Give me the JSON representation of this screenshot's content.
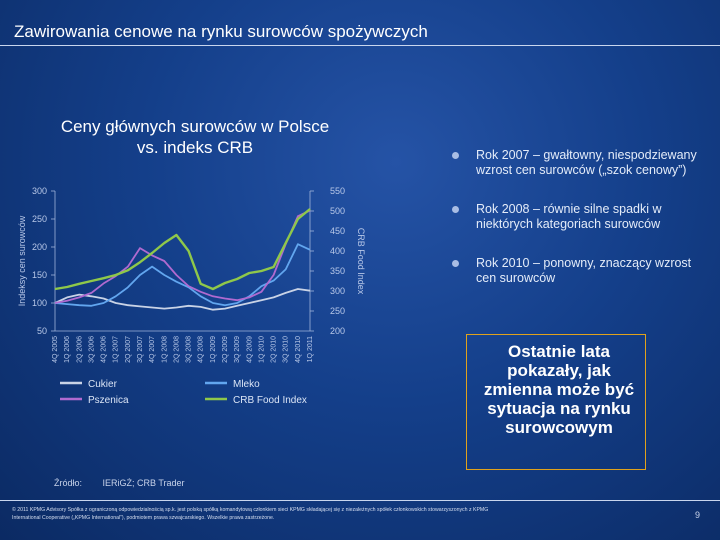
{
  "slide": {
    "title": "Zawirowania cenowe na rynku surowców spożywczych",
    "chart_heading": "Ceny głównych surowców w Polsce vs. indeks CRB",
    "bullets": [
      "Rok 2007 – gwałtowny, niespodziewany wzrost cen surowców („szok cenowy”)",
      "Rok 2008 – równie silne spadki w niektórych kategoriach surowców",
      "Rok 2010 – ponowny, znaczący wzrost cen surowców"
    ],
    "callout": "Ostatnie lata pokazały, jak zmienna może być sytuacja na rynku surowcowym",
    "source_label": "Źródło:",
    "source_text": "IERiGŻ; CRB Trader",
    "footer": "© 2011 KPMG Advisory Spółka z ograniczoną odpowiedzialnością sp.k. jest polską spółką komandytową członkiem sieci KPMG składającej się z niezależnych spółek członkowskich stowarzyszonych z KPMG International Cooperative („KPMG International”), podmiotem prawa szwajcarskiego. Wszelkie prawa zastrzeżone.",
    "page_number": "9"
  },
  "colors": {
    "sugar": "#c9d3e6",
    "wheat": "#b06ad0",
    "milk": "#62a6ef",
    "crb": "#8fc84a",
    "callout_border": "#e0a21c"
  },
  "chart_data": {
    "type": "line",
    "title": "Ceny głównych surowców w Polsce vs. indeks CRB",
    "ylabel": "Indeksy cen surowców",
    "y2label": "CRB Food Index",
    "ylim": [
      50,
      300
    ],
    "yticks": [
      50,
      100,
      150,
      200,
      250,
      300
    ],
    "y2lim": [
      200,
      550
    ],
    "y2ticks": [
      200,
      250,
      300,
      350,
      400,
      450,
      500,
      550
    ],
    "categories": [
      "4Q 2005",
      "1Q 2006",
      "2Q 2006",
      "3Q 2006",
      "4Q 2006",
      "1Q 2007",
      "2Q 2007",
      "3Q 2007",
      "4Q 2007",
      "1Q 2008",
      "2Q 2008",
      "3Q 2008",
      "4Q 2008",
      "1Q 2009",
      "2Q 2009",
      "3Q 2009",
      "4Q 2009",
      "1Q 2010",
      "2Q 2010",
      "3Q 2010",
      "4Q 2010",
      "1Q 2011"
    ],
    "series": [
      {
        "name": "Cukier",
        "axis": "left",
        "values": [
          100,
          110,
          115,
          112,
          108,
          100,
          96,
          94,
          92,
          90,
          92,
          95,
          93,
          88,
          90,
          95,
          100,
          105,
          110,
          118,
          125,
          122
        ]
      },
      {
        "name": "Mleko",
        "axis": "left",
        "values": [
          100,
          98,
          96,
          95,
          100,
          112,
          128,
          150,
          165,
          150,
          138,
          128,
          112,
          100,
          96,
          100,
          112,
          130,
          140,
          160,
          205,
          195
        ]
      },
      {
        "name": "Pszenica",
        "axis": "left",
        "values": [
          100,
          104,
          110,
          118,
          135,
          148,
          165,
          198,
          185,
          175,
          150,
          130,
          120,
          112,
          108,
          105,
          110,
          120,
          150,
          205,
          255,
          265
        ]
      },
      {
        "name": "CRB Food Index",
        "axis": "right",
        "values": [
          305,
          310,
          318,
          325,
          332,
          340,
          352,
          372,
          395,
          420,
          440,
          400,
          318,
          305,
          320,
          330,
          345,
          350,
          360,
          420,
          480,
          505
        ]
      }
    ],
    "legend": "bottom"
  }
}
